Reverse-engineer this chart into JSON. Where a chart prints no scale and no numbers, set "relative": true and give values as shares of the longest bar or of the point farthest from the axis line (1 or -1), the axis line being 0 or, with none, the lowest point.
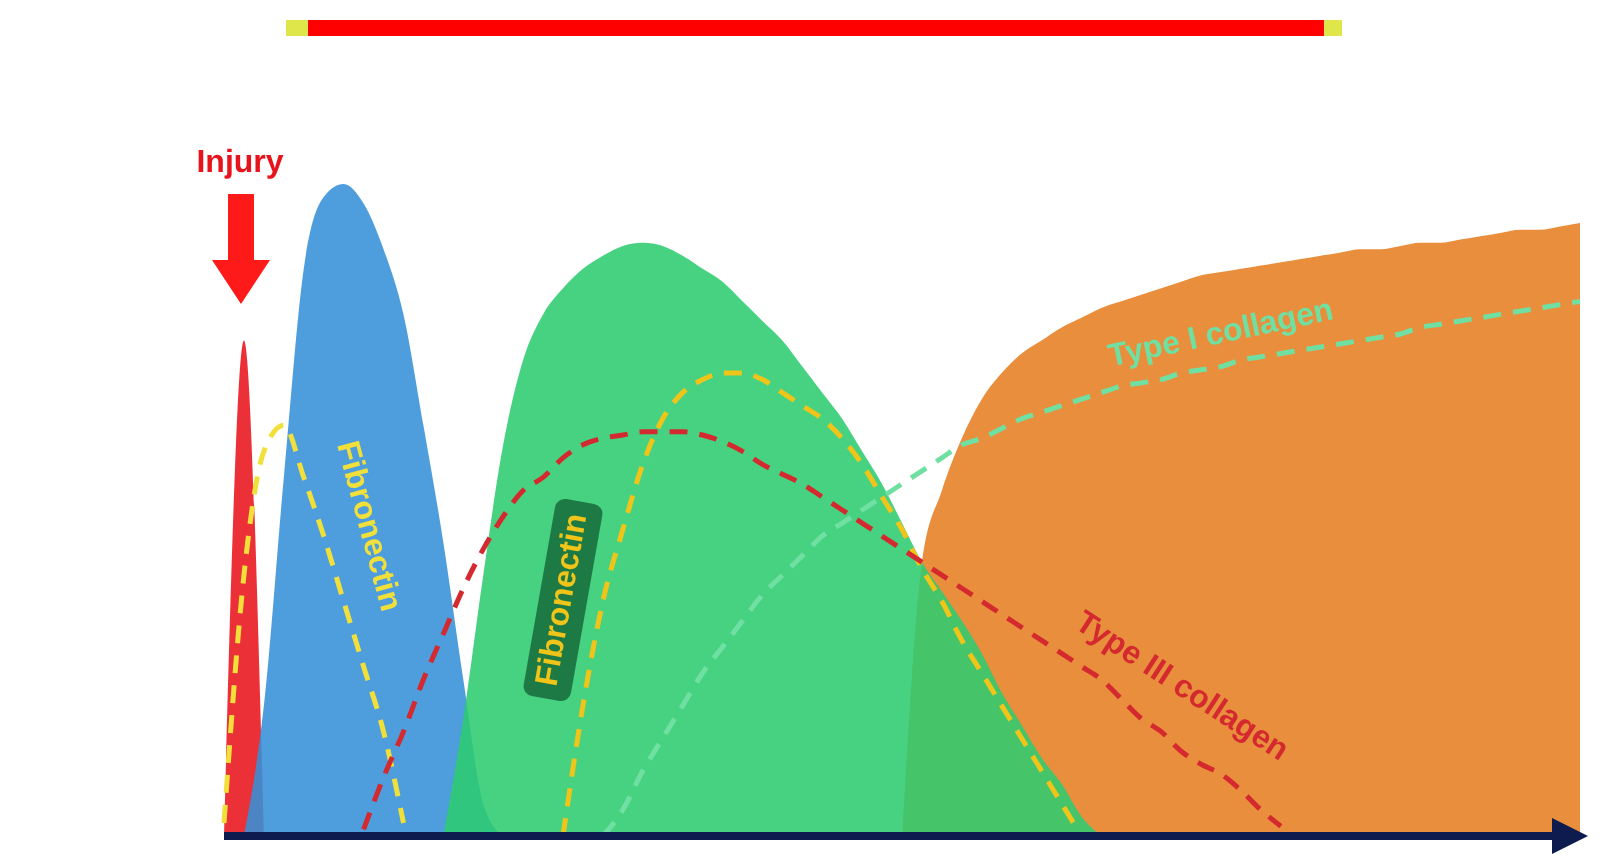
{
  "chart_data": {
    "type": "area",
    "relative": true,
    "categories": [
      null,
      null,
      null,
      null,
      null,
      null,
      null,
      null,
      null,
      null,
      null,
      null,
      null,
      null,
      null,
      null,
      null,
      null,
      null,
      null,
      null,
      null,
      null,
      null,
      null,
      null,
      null,
      null,
      null,
      null,
      null,
      null,
      null,
      null,
      null,
      null,
      null,
      null,
      null,
      null,
      null,
      null,
      null,
      null,
      null,
      null,
      null,
      null,
      null,
      null,
      null,
      null,
      null,
      null,
      null,
      null,
      null,
      null,
      null,
      null,
      null,
      null,
      null,
      null,
      null,
      null,
      null,
      null,
      null
    ],
    "annotations": [
      "Injury"
    ],
    "series": [
      {
        "color": "#e8141b",
        "values": [
          0,
          0.76,
          0,
          null,
          null,
          null,
          null,
          null,
          null,
          null,
          null,
          null,
          null,
          null,
          null,
          null,
          null,
          null,
          null,
          null,
          null,
          null,
          null,
          null,
          null,
          null,
          null,
          null,
          null,
          null,
          null,
          null,
          null,
          null,
          null,
          null,
          null,
          null,
          null,
          null,
          null,
          null,
          null,
          null,
          null,
          null,
          null,
          null,
          null,
          null,
          null,
          null,
          null,
          null,
          null,
          null,
          null,
          null,
          null,
          null,
          null,
          null,
          null,
          null,
          null,
          null,
          null,
          null,
          null
        ]
      },
      {
        "color": "#3690d8",
        "values": [
          null,
          0,
          0.2,
          0.55,
          0.87,
          0.98,
          1.0,
          0.97,
          0.9,
          0.8,
          0.63,
          0.45,
          0.24,
          0.05,
          0,
          null,
          null,
          null,
          null,
          null,
          null,
          null,
          null,
          null,
          null,
          null,
          null,
          null,
          null,
          null,
          null,
          null,
          null,
          null,
          null,
          null,
          null,
          null,
          null,
          null,
          null,
          null,
          null,
          null,
          null,
          null,
          null,
          null,
          null,
          null,
          null,
          null,
          null,
          null,
          null,
          null,
          null,
          null,
          null,
          null,
          null,
          null,
          null,
          null,
          null,
          null,
          null,
          null,
          null
        ]
      },
      {
        "color": "#e67e22",
        "values": [
          null,
          null,
          null,
          null,
          null,
          null,
          null,
          null,
          null,
          null,
          null,
          null,
          null,
          null,
          null,
          null,
          null,
          null,
          null,
          null,
          null,
          null,
          null,
          null,
          null,
          null,
          null,
          null,
          null,
          null,
          null,
          null,
          null,
          null,
          0,
          0.42,
          0.53,
          0.61,
          0.67,
          0.71,
          0.74,
          0.76,
          0.78,
          0.795,
          0.81,
          0.82,
          0.83,
          0.84,
          0.85,
          0.86,
          0.865,
          0.87,
          0.875,
          0.88,
          0.885,
          0.89,
          0.895,
          0.9,
          0.9,
          0.905,
          0.91,
          0.91,
          0.915,
          0.92,
          0.925,
          0.93,
          0.93,
          0.935,
          0.94
        ]
      },
      {
        "color": "#2ecc71",
        "values": [
          null,
          null,
          null,
          null,
          null,
          null,
          null,
          null,
          null,
          null,
          null,
          0,
          0.18,
          0.4,
          0.6,
          0.73,
          0.8,
          0.84,
          0.87,
          0.89,
          0.905,
          0.91,
          0.905,
          0.89,
          0.87,
          0.85,
          0.82,
          0.79,
          0.76,
          0.72,
          0.68,
          0.64,
          0.59,
          0.54,
          0.48,
          0.42,
          0.375,
          0.33,
          0.28,
          0.22,
          0.17,
          0.12,
          0.08,
          0.03,
          0,
          null,
          null,
          null,
          null,
          null,
          null,
          null,
          null,
          null,
          null,
          null,
          null,
          null,
          null,
          null,
          null,
          null,
          null,
          null,
          null,
          null,
          null,
          null,
          null
        ]
      },
      {
        "type": "line",
        "name": "Fibronectin",
        "color": "#f2e03a",
        "line_style": "dashed",
        "values": [
          0.02,
          0.4,
          0.59,
          0.63,
          0.55,
          0.46,
          0.36,
          0.26,
          0.16,
          0.02,
          null,
          null,
          null,
          null,
          null,
          null,
          null,
          null,
          null,
          null,
          null,
          null,
          null,
          null,
          null,
          null,
          null,
          null,
          null,
          null,
          null,
          null,
          null,
          null,
          null,
          null,
          null,
          null,
          null,
          null,
          null,
          null,
          null,
          null,
          null,
          null,
          null,
          null,
          null,
          null,
          null,
          null,
          null,
          null,
          null,
          null,
          null,
          null,
          null,
          null,
          null,
          null,
          null,
          null,
          null,
          null,
          null,
          null,
          null
        ]
      },
      {
        "type": "line",
        "name": "Fibronectin",
        "color": "#f0c419",
        "line_style": "dashed",
        "values": [
          null,
          null,
          null,
          null,
          null,
          null,
          null,
          null,
          null,
          null,
          null,
          null,
          null,
          null,
          null,
          null,
          null,
          0,
          0.2,
          0.36,
          0.47,
          0.57,
          0.64,
          0.68,
          0.7,
          0.71,
          0.71,
          0.7,
          0.68,
          0.66,
          0.64,
          0.61,
          0.57,
          0.52,
          0.47,
          0.41,
          0.36,
          0.3,
          0.25,
          0.2,
          0.15,
          0.1,
          0.05,
          0,
          null,
          null,
          null,
          null,
          null,
          null,
          null,
          null,
          null,
          null,
          null,
          null,
          null,
          null,
          null,
          null,
          null,
          null,
          null,
          null,
          null,
          null,
          null,
          null,
          null
        ]
      },
      {
        "type": "line",
        "name": "Type III collagen",
        "color": "#d42a2f",
        "line_style": "dashed",
        "values": [
          null,
          null,
          null,
          null,
          null,
          null,
          null,
          0.01,
          0.09,
          0.16,
          0.24,
          0.31,
          0.38,
          0.44,
          0.49,
          0.53,
          0.55,
          0.58,
          0.6,
          0.61,
          0.615,
          0.62,
          0.62,
          0.62,
          0.615,
          0.605,
          0.59,
          0.57,
          0.555,
          0.54,
          0.52,
          0.5,
          0.48,
          0.46,
          0.44,
          0.42,
          0.4,
          0.38,
          0.36,
          0.34,
          0.32,
          0.3,
          0.28,
          0.26,
          0.24,
          0.21,
          0.18,
          0.16,
          0.13,
          0.11,
          0.095,
          0.07,
          0.04,
          0.015,
          null,
          null,
          null,
          null,
          null,
          null,
          null,
          null,
          null,
          null,
          null,
          null,
          null,
          null,
          null
        ]
      },
      {
        "type": "line",
        "name": "Type I collagen",
        "color": "#6fe0a2",
        "line_style": "dashed",
        "values": [
          null,
          null,
          null,
          null,
          null,
          null,
          null,
          null,
          null,
          null,
          null,
          null,
          null,
          null,
          null,
          null,
          null,
          null,
          null,
          0,
          0.04,
          0.1,
          0.15,
          0.2,
          0.25,
          0.29,
          0.33,
          0.37,
          0.4,
          0.43,
          0.46,
          0.48,
          0.5,
          0.52,
          0.54,
          0.56,
          0.58,
          0.6,
          0.61,
          0.625,
          0.64,
          0.65,
          0.66,
          0.67,
          0.68,
          0.69,
          0.695,
          0.7,
          0.71,
          0.715,
          0.72,
          0.73,
          0.735,
          0.74,
          0.745,
          0.75,
          0.755,
          0.76,
          0.765,
          0.77,
          0.78,
          0.785,
          0.79,
          0.795,
          0.8,
          0.805,
          0.81,
          0.815,
          0.82
        ]
      }
    ]
  }
}
